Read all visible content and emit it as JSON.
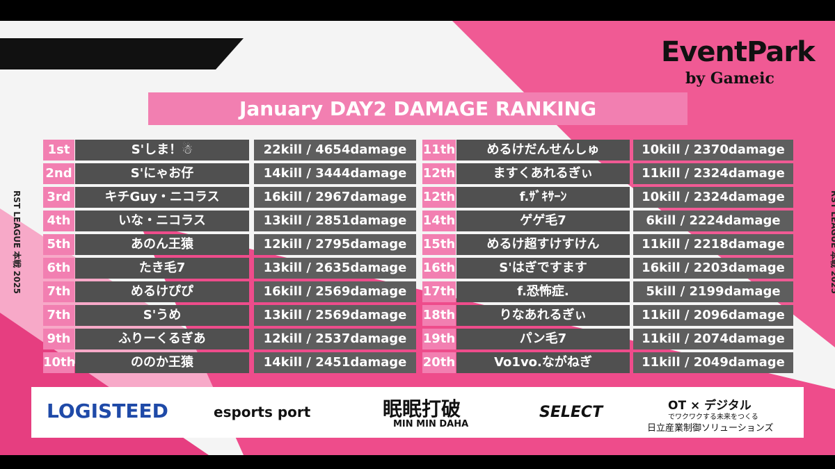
{
  "brand": {
    "name": "EventPark",
    "by": "by Gameic"
  },
  "side_label": "RST LEAGUE 本戦 2025",
  "title": "January DAY2 DAMAGE RANKING",
  "rankings": [
    {
      "rank": "1st",
      "name": "S'しま！☃",
      "result": "22kill / 4654damage"
    },
    {
      "rank": "2nd",
      "name": "S'にゃお仔",
      "result": "14kill / 3444damage"
    },
    {
      "rank": "3rd",
      "name": "キチGuy・ニコラス",
      "result": "16kill / 2967damage"
    },
    {
      "rank": "4th",
      "name": "いな・ニコラス",
      "result": "13kill / 2851damage"
    },
    {
      "rank": "5th",
      "name": "あのん王猿",
      "result": "12kill / 2795damage"
    },
    {
      "rank": "6th",
      "name": "たき毛7",
      "result": "13kill / 2635damage"
    },
    {
      "rank": "7th",
      "name": "めるけぴぴ",
      "result": "16kill / 2569damage"
    },
    {
      "rank": "7th",
      "name": "S'うめ",
      "result": "13kill / 2569damage"
    },
    {
      "rank": "9th",
      "name": "ふりーくるぎあ",
      "result": "12kill / 2537damage"
    },
    {
      "rank": "10th",
      "name": "ののか王猿",
      "result": "14kill / 2451damage"
    },
    {
      "rank": "11th",
      "name": "めるけだんせんしゅ",
      "result": "10kill / 2370damage"
    },
    {
      "rank": "12th",
      "name": "ますくあれるぎぃ",
      "result": "11kill / 2324damage"
    },
    {
      "rank": "12th",
      "name": "f.ｻﾞｷｻｰﾝ",
      "result": "10kill / 2324damage"
    },
    {
      "rank": "14th",
      "name": "ゲゲ毛7",
      "result": "6kill / 2224damage"
    },
    {
      "rank": "15th",
      "name": "めるけ超すけすけん",
      "result": "11kill / 2218damage"
    },
    {
      "rank": "16th",
      "name": "S'はぎですます",
      "result": "16kill / 2203damage"
    },
    {
      "rank": "17th",
      "name": "f.恐怖症.",
      "result": "5kill / 2199damage"
    },
    {
      "rank": "18th",
      "name": "りなあれるぎぃ",
      "result": "11kill / 2096damage"
    },
    {
      "rank": "19th",
      "name": "パン毛7",
      "result": "11kill / 2074damage"
    },
    {
      "rank": "20th",
      "name": "Vo1vo.ながねぎ",
      "result": "11kill / 2049damage"
    }
  ],
  "sponsors": {
    "logisteed": "LOGISTEED",
    "esports": "esports port",
    "minmin": "眠眠打破",
    "minmin_sub": "MIN MIN DAHA",
    "select": "SELECT",
    "hitachi_top": "OT × デジタル",
    "hitachi_tag": "でワクワクする未来をつくる",
    "hitachi_name": "日立産業制御ソリューションズ"
  }
}
